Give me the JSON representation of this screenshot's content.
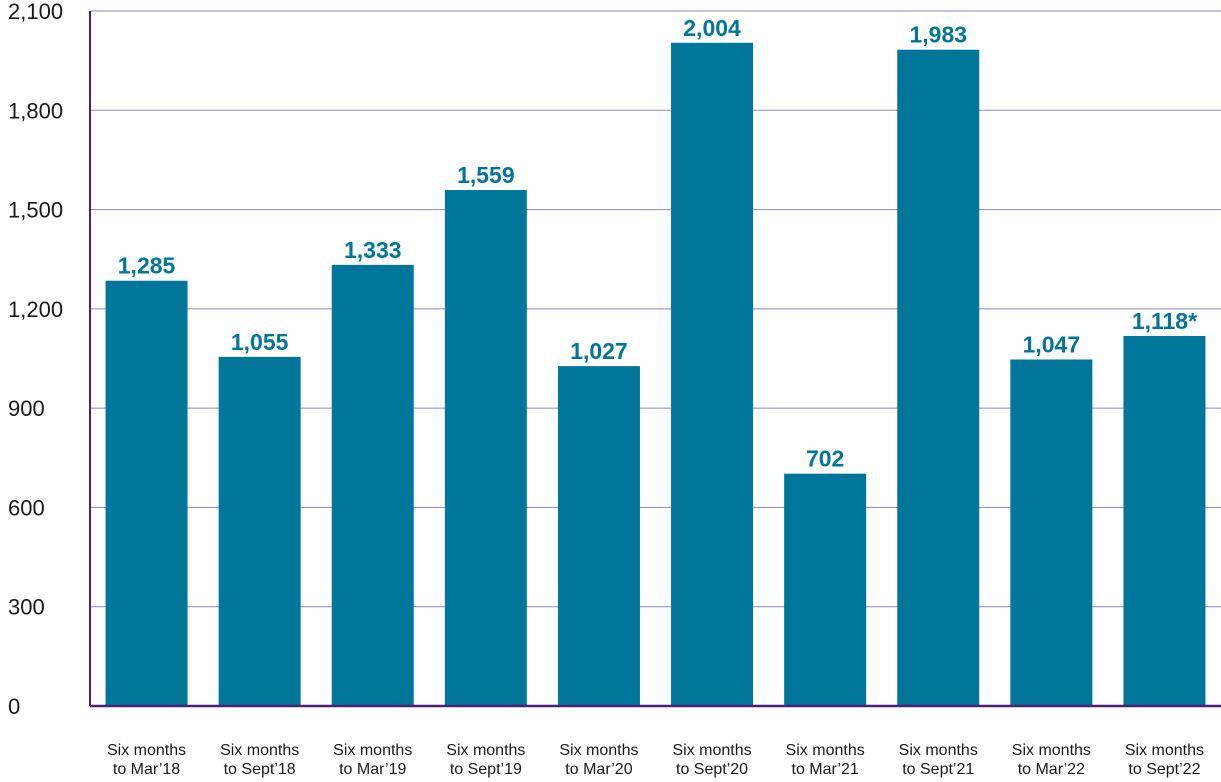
{
  "chart_data": {
    "type": "bar",
    "categories": [
      [
        "Six months",
        "to Mar’18"
      ],
      [
        "Six months",
        "to Sept’18"
      ],
      [
        "Six months",
        "to Mar’19"
      ],
      [
        "Six months",
        "to Sept’19"
      ],
      [
        "Six months",
        "to Mar’20"
      ],
      [
        "Six months",
        "to Sept’20"
      ],
      [
        "Six months",
        "to Mar’21"
      ],
      [
        "Six months",
        "to Sept’21"
      ],
      [
        "Six months",
        "to Mar’22"
      ],
      [
        "Six months",
        "to Sept’22"
      ]
    ],
    "values": [
      1285,
      1055,
      1333,
      1559,
      1027,
      2004,
      702,
      1983,
      1047,
      1118
    ],
    "data_labels": [
      "1,285",
      "1,055",
      "1,333",
      "1,559",
      "1,027",
      "2,004",
      "702",
      "1,983",
      "1,047",
      "1,118*"
    ],
    "ylim": [
      0,
      2100
    ],
    "yticks": [
      0,
      300,
      600,
      900,
      1200,
      1500,
      1800,
      2100
    ],
    "ytick_labels": [
      "0",
      "300",
      "600",
      "900",
      "1,200",
      "1,500",
      "1,800",
      "2,100"
    ],
    "title": "",
    "xlabel": "",
    "ylabel": "",
    "grid": true,
    "colors": {
      "bar": "#00769b",
      "data_label": "#00769b",
      "axis": "#4b1f7a",
      "grid": "#8f86bf"
    }
  }
}
